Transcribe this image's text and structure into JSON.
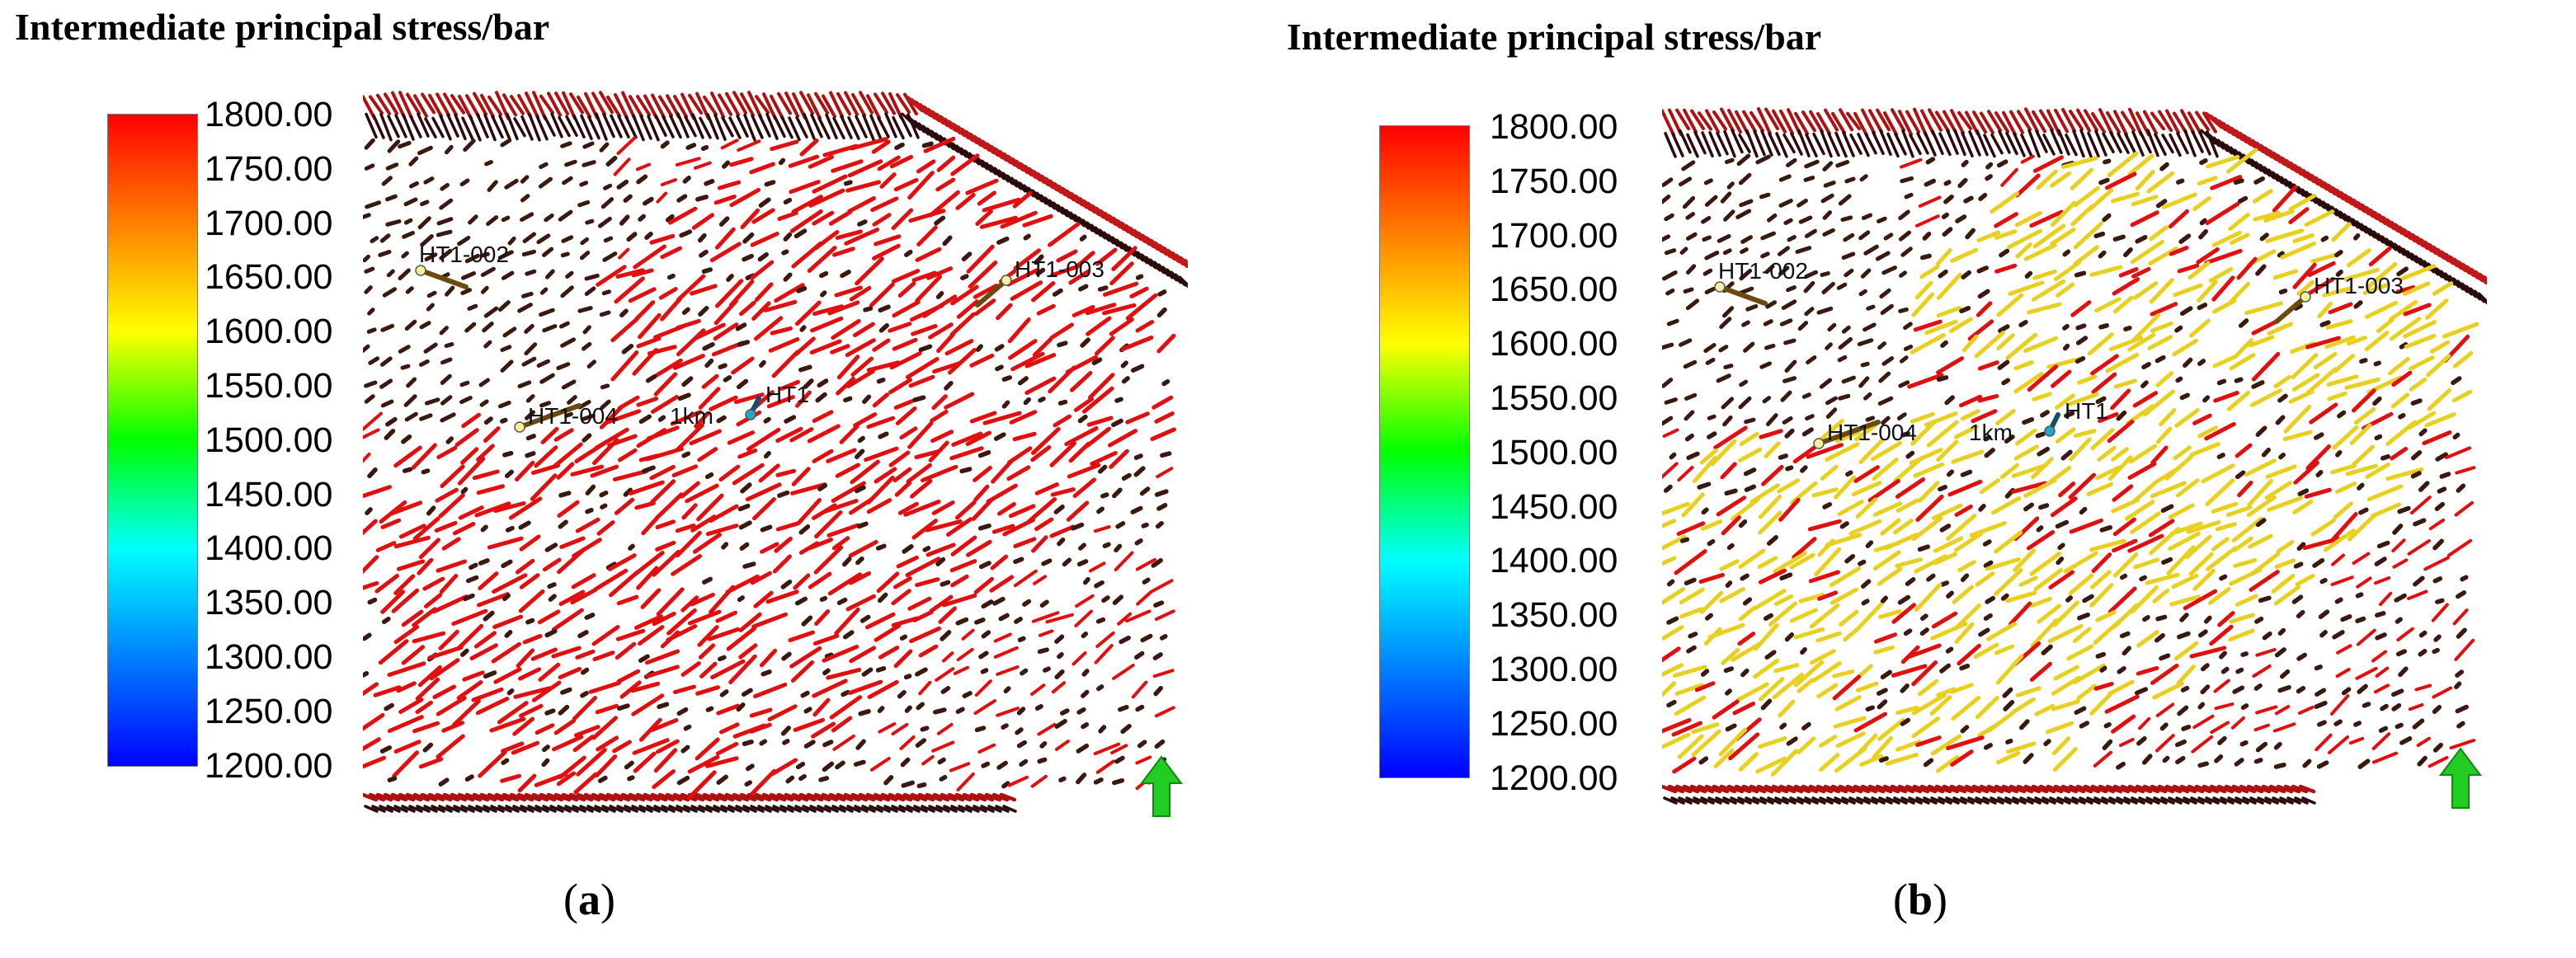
{
  "figure": {
    "panels": [
      {
        "id": "a",
        "title": "Intermediate principal stress/bar",
        "caption_open": "(",
        "caption_letter": "a",
        "caption_close": ")",
        "colorbar_ticks": [
          "1800.00",
          "1750.00",
          "1700.00",
          "1650.00",
          "1600.00",
          "1550.00",
          "1500.00",
          "1450.00",
          "1400.00",
          "1350.00",
          "1300.00",
          "1250.00",
          "1200.00"
        ],
        "wells": [
          {
            "label": "HT1-002"
          },
          {
            "label": "HT1-003"
          },
          {
            "label": "HT1"
          },
          {
            "label": "HT1-004"
          }
        ],
        "scale_label": "1km",
        "dominant_color": "#e01010"
      },
      {
        "id": "b",
        "title": "Intermediate principal stress/bar",
        "caption_open": "(",
        "caption_letter": "b",
        "caption_close": ")",
        "colorbar_ticks": [
          "1800.00",
          "1750.00",
          "1700.00",
          "1650.00",
          "1600.00",
          "1550.00",
          "1500.00",
          "1450.00",
          "1400.00",
          "1350.00",
          "1300.00",
          "1250.00",
          "1200.00"
        ],
        "wells": [
          {
            "label": "HT1-002"
          },
          {
            "label": "HT1-003"
          },
          {
            "label": "HT1"
          },
          {
            "label": "HT1-004"
          }
        ],
        "scale_label": "1km",
        "dominant_color": "#e8d020"
      }
    ],
    "colors": {
      "stress_high": "#e01010",
      "stress_mid": "#f2e640",
      "dark_marker": "#3a1a10",
      "well_line": "#6b4a10",
      "well_head": "#f5f0a0",
      "center_well": "#20a8c8",
      "north_arrow": "#22cc22"
    },
    "icons": [
      "north-arrow-icon",
      "well-marker-icon"
    ]
  }
}
